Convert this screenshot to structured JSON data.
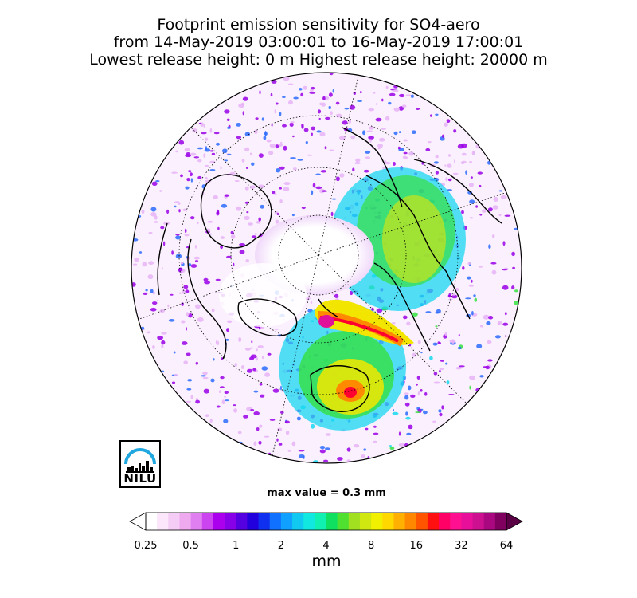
{
  "title": {
    "line1": "Footprint emission sensitivity for SO4-aero",
    "line2": "from 14-May-2019 03:00:01 to 16-May-2019 17:00:01",
    "line3": "Lowest release height: 0 m      Highest release height: 20000 m"
  },
  "logo": {
    "text": "NILU"
  },
  "max_value_text": "max value = 0.3 mm",
  "colorbar": {
    "ticks": [
      "0.25",
      "0.5",
      "1",
      "2",
      "4",
      "8",
      "16",
      "32",
      "64"
    ],
    "unit": "mm",
    "colors": [
      "#ffffff",
      "#fbe6fb",
      "#f5ccf5",
      "#efaaef",
      "#e080f0",
      "#cc44f0",
      "#aa00ee",
      "#8800e8",
      "#5500e0",
      "#2200dd",
      "#1030f0",
      "#1070ff",
      "#10a0ff",
      "#10c8f0",
      "#10e8e0",
      "#10f0b0",
      "#10e060",
      "#50e030",
      "#a0e020",
      "#d0e810",
      "#f0f000",
      "#ffd800",
      "#ffb000",
      "#ff8800",
      "#ff5500",
      "#ff1010",
      "#ff0066",
      "#ff1090",
      "#e8109a",
      "#cc1090",
      "#aa0880",
      "#800060"
    ]
  },
  "map_colors": {
    "light_purple": "#e6b3f7",
    "purple": "#9900e6",
    "blue": "#2a6bff",
    "cyan": "#18d8f0",
    "green": "#35e040",
    "yellow": "#f2e600",
    "orange": "#ff8a00",
    "red": "#ff0030",
    "magenta": "#e0109a"
  }
}
